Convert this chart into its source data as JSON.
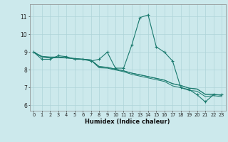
{
  "x_values": [
    0,
    1,
    2,
    3,
    4,
    5,
    6,
    7,
    8,
    9,
    10,
    11,
    12,
    13,
    14,
    15,
    16,
    17,
    18,
    19,
    20,
    21,
    22,
    23
  ],
  "line1": [
    9.0,
    8.6,
    8.6,
    8.8,
    8.75,
    8.6,
    8.6,
    8.5,
    8.6,
    9.0,
    8.1,
    8.1,
    9.4,
    10.95,
    11.1,
    9.3,
    9.0,
    8.5,
    7.0,
    6.9,
    6.6,
    6.2,
    6.6,
    6.6
  ],
  "line2": [
    9.0,
    8.75,
    8.7,
    8.72,
    8.68,
    8.64,
    8.6,
    8.56,
    8.2,
    8.15,
    8.05,
    7.95,
    7.82,
    7.72,
    7.62,
    7.52,
    7.42,
    7.22,
    7.12,
    6.97,
    6.92,
    6.62,
    6.62,
    6.57
  ],
  "line3": [
    9.0,
    8.72,
    8.67,
    8.69,
    8.67,
    8.63,
    8.59,
    8.55,
    8.12,
    8.1,
    8.0,
    7.9,
    7.75,
    7.65,
    7.55,
    7.45,
    7.35,
    7.1,
    7.0,
    6.85,
    6.8,
    6.5,
    6.55,
    6.5
  ],
  "line4": [
    9.0,
    8.77,
    8.73,
    8.73,
    8.69,
    8.65,
    8.61,
    8.57,
    8.18,
    8.14,
    8.04,
    7.95,
    7.82,
    7.73,
    7.63,
    7.53,
    7.43,
    7.23,
    7.13,
    6.98,
    6.93,
    6.63,
    6.63,
    6.58
  ],
  "line_color": "#1a7a6e",
  "bg_color": "#cce9ec",
  "grid_color": "#aed4d8",
  "xlabel": "Humidex (Indice chaleur)",
  "xlim": [
    -0.5,
    23.5
  ],
  "ylim": [
    5.7,
    11.7
  ],
  "yticks": [
    6,
    7,
    8,
    9,
    10,
    11
  ],
  "xticks": [
    0,
    1,
    2,
    3,
    4,
    5,
    6,
    7,
    8,
    9,
    10,
    11,
    12,
    13,
    14,
    15,
    16,
    17,
    18,
    19,
    20,
    21,
    22,
    23
  ]
}
